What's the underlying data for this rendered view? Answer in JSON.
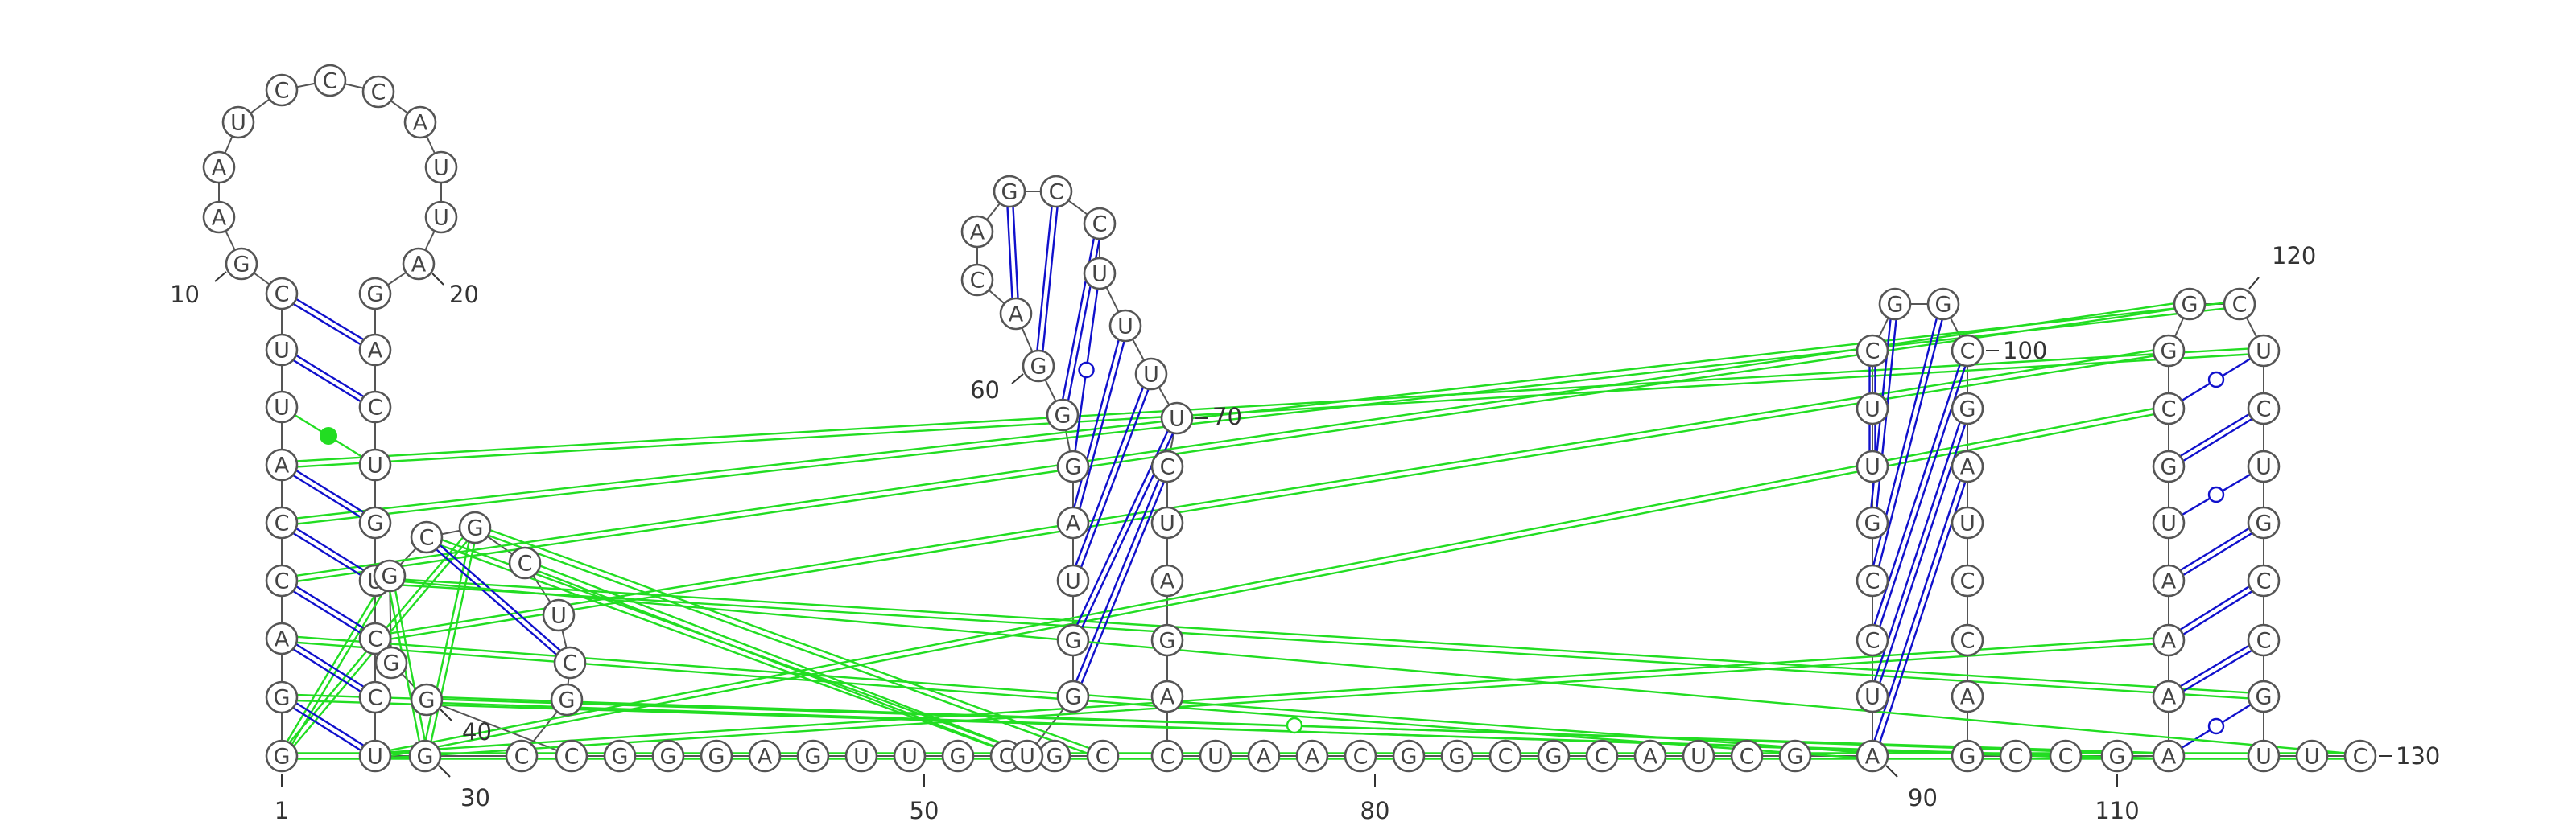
{
  "colors": {
    "canonical_pair": "#1010cc",
    "tertiary_pair": "#22dd22",
    "nucleotide_outline": "#555555",
    "text": "#333333"
  },
  "nucleotides": [
    "G",
    "G",
    "A",
    "C",
    "C",
    "A",
    "U",
    "U",
    "C",
    "G",
    "A",
    "A",
    "U",
    "C",
    "C",
    "C",
    "A",
    "U",
    "U",
    "A",
    "G",
    "A",
    "C",
    "U",
    "G",
    "U",
    "C",
    "C",
    "U",
    "G",
    "C",
    "G",
    "C",
    "U",
    "C",
    "G",
    "C",
    "G",
    "G",
    "G",
    "C",
    "G",
    "G",
    "G",
    "A",
    "G",
    "U",
    "U",
    "G",
    "C",
    "G",
    "C",
    "U",
    "G",
    "G",
    "U",
    "A",
    "G",
    "G",
    "G",
    "A",
    "C",
    "A",
    "G",
    "C",
    "C",
    "U",
    "U",
    "U",
    "U",
    "C",
    "U",
    "A",
    "G",
    "A",
    "C",
    "U",
    "A",
    "A",
    "C",
    "G",
    "G",
    "C",
    "G",
    "C",
    "A",
    "U",
    "C",
    "G",
    "A",
    "U",
    "C",
    "C",
    "G",
    "U",
    "U",
    "C",
    "G",
    "G",
    "C",
    "G",
    "A",
    "U",
    "C",
    "C",
    "A",
    "G",
    "C",
    "C",
    "G",
    "A",
    "A",
    "A",
    "A",
    "U",
    "G",
    "C",
    "G",
    "G",
    "C",
    "U",
    "C",
    "U",
    "G",
    "C",
    "C",
    "G",
    "U",
    "U",
    "C"
  ],
  "position_labels": [
    {
      "n": 1,
      "text": "1"
    },
    {
      "n": 10,
      "text": "10"
    },
    {
      "n": 20,
      "text": "20"
    },
    {
      "n": 30,
      "text": "30"
    },
    {
      "n": 40,
      "text": "40"
    },
    {
      "n": 50,
      "text": "50"
    },
    {
      "n": 60,
      "text": "60"
    },
    {
      "n": 70,
      "text": "70"
    },
    {
      "n": 80,
      "text": "80"
    },
    {
      "n": 90,
      "text": "90"
    },
    {
      "n": 100,
      "text": "100"
    },
    {
      "n": 110,
      "text": "110"
    },
    {
      "n": 120,
      "text": "120"
    },
    {
      "n": 130,
      "text": "130"
    }
  ],
  "base_pairs": [
    {
      "i": 2,
      "j": 29,
      "type": "watson-crick"
    },
    {
      "i": 3,
      "j": 28,
      "type": "watson-crick"
    },
    {
      "i": 4,
      "j": 27,
      "type": "watson-crick"
    },
    {
      "i": 5,
      "j": 26,
      "type": "watson-crick"
    },
    {
      "i": 6,
      "j": 25,
      "type": "watson-crick"
    },
    {
      "i": 7,
      "j": 24,
      "type": "non-canonical"
    },
    {
      "i": 8,
      "j": 23,
      "type": "watson-crick"
    },
    {
      "i": 9,
      "j": 22,
      "type": "watson-crick"
    },
    {
      "i": 33,
      "j": 37,
      "type": "watson-crick"
    },
    {
      "i": 54,
      "j": 71,
      "type": "watson-crick"
    },
    {
      "i": 55,
      "j": 70,
      "type": "watson-crick"
    },
    {
      "i": 56,
      "j": 69,
      "type": "watson-crick"
    },
    {
      "i": 57,
      "j": 68,
      "type": "watson-crick"
    },
    {
      "i": 58,
      "j": 67,
      "type": "wobble"
    },
    {
      "i": 59,
      "j": 66,
      "type": "watson-crick"
    },
    {
      "i": 60,
      "j": 65,
      "type": "watson-crick"
    },
    {
      "i": 61,
      "j": 64,
      "type": "watson-crick"
    },
    {
      "i": 90,
      "j": 102,
      "type": "watson-crick"
    },
    {
      "i": 91,
      "j": 101,
      "type": "watson-crick"
    },
    {
      "i": 92,
      "j": 100,
      "type": "watson-crick"
    },
    {
      "i": 93,
      "j": 99,
      "type": "watson-crick"
    },
    {
      "i": 94,
      "j": 98,
      "type": "watson-crick"
    },
    {
      "i": 95,
      "j": 97,
      "type": "watson-crick"
    },
    {
      "i": 96,
      "j": 96,
      "type": "watson-crick"
    },
    {
      "i": 111,
      "j": 127,
      "type": "wobble"
    },
    {
      "i": 112,
      "j": 126,
      "type": "watson-crick"
    },
    {
      "i": 113,
      "j": 125,
      "type": "watson-crick"
    },
    {
      "i": 114,
      "j": 124,
      "type": "watson-crick"
    },
    {
      "i": 115,
      "j": 123,
      "type": "wobble"
    },
    {
      "i": 116,
      "j": 122,
      "type": "watson-crick"
    },
    {
      "i": 117,
      "j": 121,
      "type": "wobble"
    }
  ],
  "tertiary_pairs": [
    {
      "i": 1,
      "j": 36
    },
    {
      "i": 1,
      "j": 38
    },
    {
      "i": 2,
      "j": 111
    },
    {
      "i": 3,
      "j": 90
    },
    {
      "i": 4,
      "j": 119
    },
    {
      "i": 5,
      "j": 120
    },
    {
      "i": 6,
      "j": 121
    },
    {
      "i": 27,
      "j": 118
    },
    {
      "i": 29,
      "j": 117
    },
    {
      "i": 30,
      "j": 36
    },
    {
      "i": 30,
      "j": 38
    },
    {
      "i": 35,
      "j": 53
    },
    {
      "i": 36,
      "j": 52
    },
    {
      "i": 37,
      "j": 53
    },
    {
      "i": 40,
      "j": 110
    },
    {
      "i": 1,
      "j": 130
    },
    {
      "i": 26,
      "j": 127
    },
    {
      "i": 29,
      "j": 113
    }
  ],
  "special_marks": [
    {
      "i": 7,
      "j": 24,
      "kind": "filled-dot"
    },
    {
      "i": 26,
      "j": 130,
      "kind": "open-circle"
    }
  ]
}
